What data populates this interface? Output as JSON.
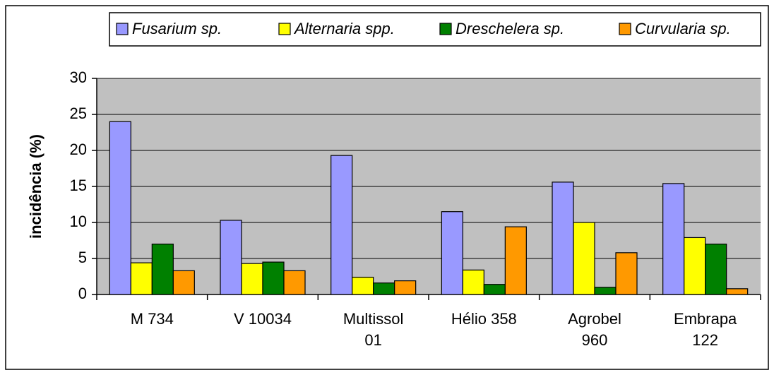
{
  "chart_data": {
    "type": "bar",
    "y_label": "incidência (%)",
    "categories": [
      "M 734",
      "V 10034",
      "Multissol 01",
      "Hélio 358",
      "Agrobel 960",
      "Embrapa 122"
    ],
    "series": [
      {
        "name": "Fusarium sp.",
        "color": "#9999ff",
        "values": [
          24.0,
          10.3,
          19.3,
          11.5,
          15.6,
          15.4
        ]
      },
      {
        "name": "Alternaria spp.",
        "color": "#ffff00",
        "values": [
          4.4,
          4.3,
          2.4,
          3.4,
          10.0,
          7.9
        ]
      },
      {
        "name": "Dreschelera sp.",
        "color": "#008000",
        "values": [
          7.0,
          4.5,
          1.6,
          1.4,
          1.0,
          7.0
        ]
      },
      {
        "name": "Curvularia sp.",
        "color": "#ff9900",
        "values": [
          3.3,
          3.3,
          1.9,
          9.4,
          5.8,
          0.8
        ]
      }
    ],
    "ylim": [
      0,
      30
    ],
    "yticks": [
      0,
      5,
      10,
      15,
      20,
      25,
      30
    ],
    "grid": true
  }
}
